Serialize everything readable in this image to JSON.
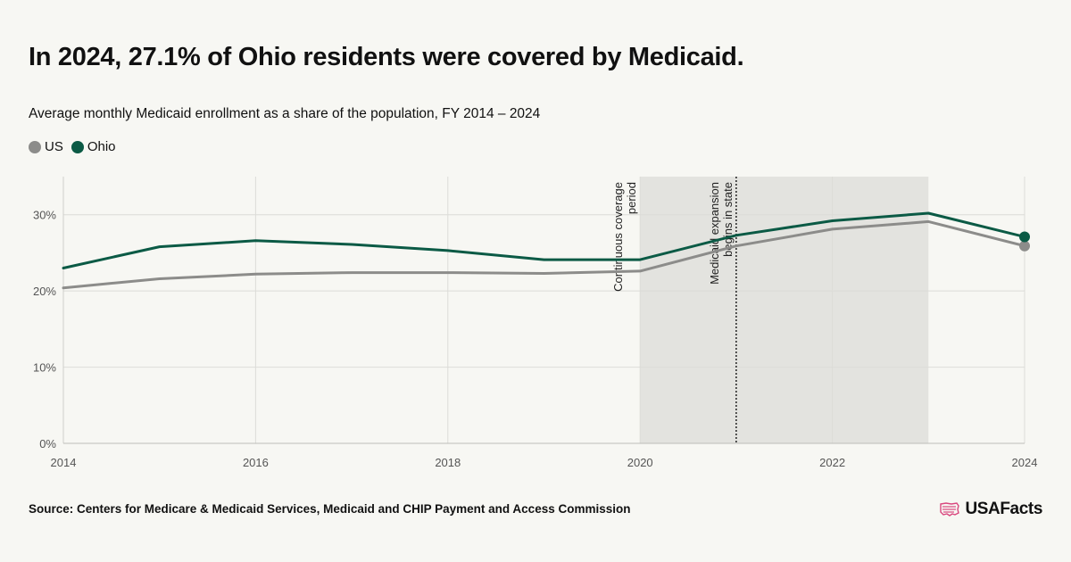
{
  "header": {
    "title": "In 2024, 27.1% of Ohio residents were covered by Medicaid.",
    "subtitle": "Average monthly Medicaid enrollment as a share of the population, FY 2014 – 2024"
  },
  "footer": {
    "source": "Source: Centers for Medicare & Medicaid Services, Medicaid and CHIP Payment and Access Commission",
    "logo_text": "USAFacts",
    "logo_icon": "us-map-flag-icon"
  },
  "chart_data": {
    "type": "line",
    "x": [
      2014,
      2015,
      2016,
      2017,
      2018,
      2019,
      2020,
      2021,
      2022,
      2023,
      2024
    ],
    "series": [
      {
        "name": "US",
        "color": "#8c8c8a",
        "values": [
          20.4,
          21.6,
          22.2,
          22.4,
          22.4,
          22.3,
          22.6,
          25.9,
          28.1,
          29.1,
          25.9
        ]
      },
      {
        "name": "Ohio",
        "color": "#0b5a45",
        "values": [
          23.0,
          25.8,
          26.6,
          26.1,
          25.3,
          24.1,
          24.1,
          27.3,
          29.2,
          30.2,
          27.1
        ]
      }
    ],
    "xticks": [
      "2014",
      "2016",
      "2018",
      "2020",
      "2022",
      "2024"
    ],
    "xtick_values": [
      2014,
      2016,
      2018,
      2020,
      2022,
      2024
    ],
    "yticks": [
      "0%",
      "10%",
      "20%",
      "30%"
    ],
    "ytick_values": [
      0,
      10,
      20,
      30
    ],
    "xlim": [
      2014,
      2024
    ],
    "ylim": [
      0,
      35
    ],
    "shaded_region": {
      "from": 2020,
      "to": 2023,
      "label": "Continuous coverage period",
      "label_lines": [
        "Continuous coverage",
        "period"
      ],
      "color": "#e3e3df"
    },
    "reference_line": {
      "x": 2021,
      "label": "Medicaid expansion begins in state",
      "label_lines": [
        "Medicaid expansion",
        "begins in state"
      ]
    },
    "legend_position": "top-left",
    "grid": true
  }
}
